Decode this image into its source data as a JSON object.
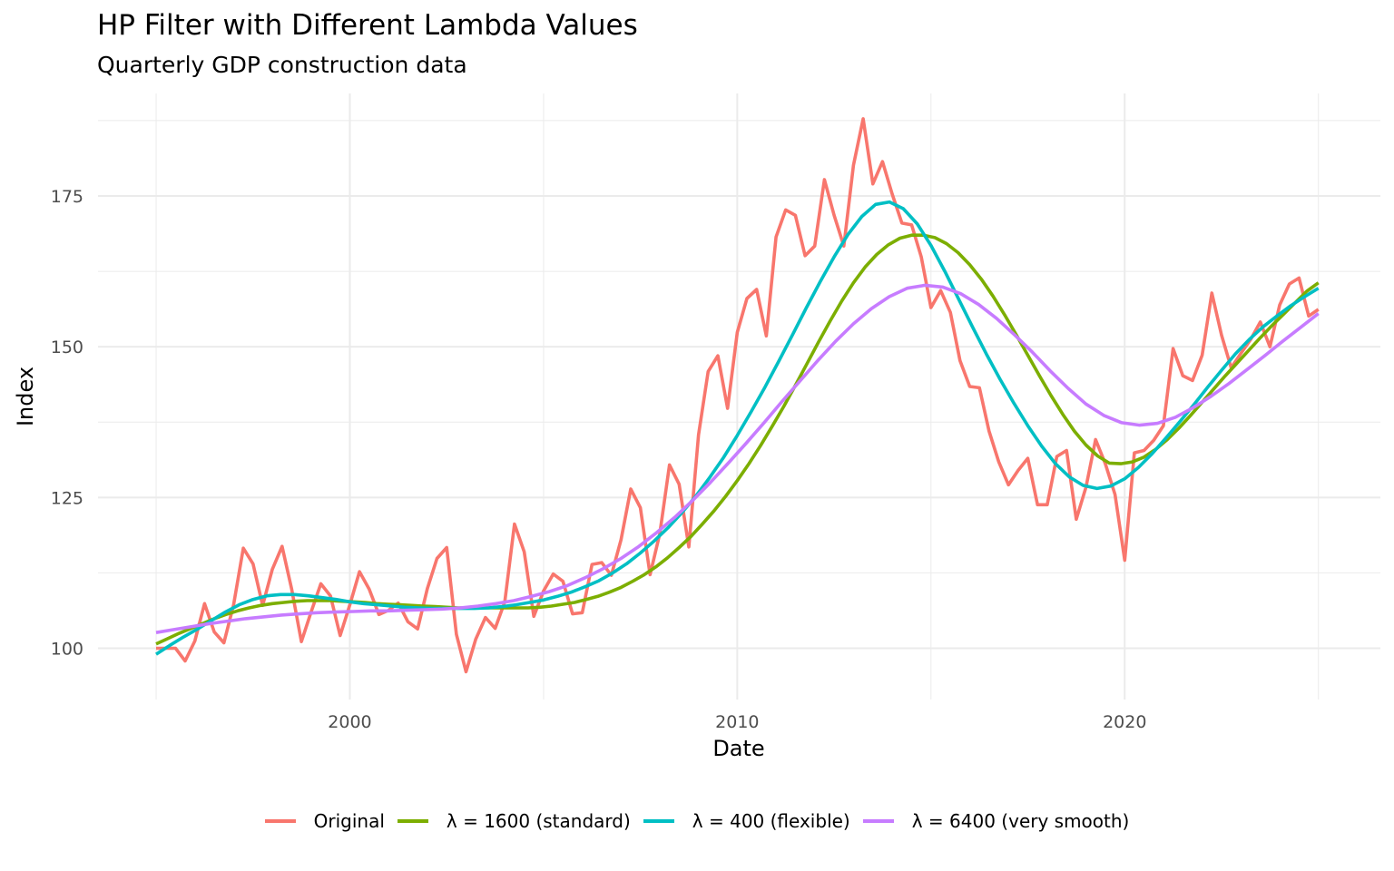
{
  "chart_data": {
    "type": "line",
    "title": "HP Filter with Different Lambda Values",
    "subtitle": "Quarterly GDP construction data",
    "xlabel": "Date",
    "ylabel": "Index",
    "x_start": 1995.0,
    "x_step": 0.25,
    "xlim": [
      1993.5,
      2026.6
    ],
    "ylim": [
      91.5,
      192.0
    ],
    "x_ticks": [
      2000,
      2010,
      2020
    ],
    "x_tick_labels": [
      "2000",
      "2010",
      "2020"
    ],
    "x_minor_ticks": [
      1995,
      2005,
      2015,
      2025
    ],
    "y_ticks": [
      100,
      125,
      150,
      175
    ],
    "y_tick_labels": [
      "100",
      "125",
      "150",
      "175"
    ],
    "y_minor_ticks": [
      112.5,
      137.5,
      162.5,
      187.5
    ],
    "grid": true,
    "legend_position": "bottom",
    "series": [
      {
        "name": "Original",
        "color": "#F8766D",
        "values": [
          100.0,
          100.0,
          100.0,
          97.9,
          101.2,
          107.4,
          102.7,
          100.9,
          107.2,
          116.6,
          114.0,
          107.1,
          113.1,
          116.9,
          109.8,
          101.1,
          106.0,
          110.7,
          108.7,
          102.1,
          107.2,
          112.7,
          109.8,
          105.6,
          106.3,
          107.5,
          104.4,
          103.2,
          109.9,
          114.9,
          116.7,
          102.3,
          96.1,
          101.5,
          105.1,
          103.3,
          107.7,
          120.6,
          116.0,
          105.3,
          109.5,
          112.3,
          111.1,
          105.7,
          105.9,
          113.9,
          114.2,
          112.1,
          118.0,
          126.4,
          123.3,
          112.2,
          119.0,
          130.4,
          127.2,
          116.8,
          135.4,
          145.9,
          148.5,
          139.8,
          152.4,
          158.0,
          159.5,
          151.8,
          168.2,
          172.7,
          171.8,
          165.1,
          166.7,
          177.7,
          171.8,
          166.7,
          180.1,
          187.8,
          177.0,
          180.7,
          175.3,
          170.5,
          170.2,
          164.9,
          156.5,
          159.3,
          155.7,
          147.7,
          143.4,
          143.2,
          136.0,
          130.9,
          127.1,
          129.5,
          131.5,
          123.8,
          123.8,
          131.8,
          132.8,
          121.4,
          126.7,
          134.6,
          130.6,
          125.5,
          114.6,
          132.4,
          132.8,
          134.5,
          136.9,
          149.7,
          145.2,
          144.4,
          148.6,
          158.9,
          151.9,
          146.5,
          148.9,
          151.2,
          154.1,
          150.0,
          156.9,
          160.4,
          161.4,
          155.1,
          156.2
        ]
      },
      {
        "name": "λ = 1600 (standard)",
        "color": "#7CAE00",
        "values": [
          100.7,
          101.6,
          102.5,
          103.3,
          104.1,
          104.9,
          105.6,
          106.2,
          106.7,
          107.1,
          107.4,
          107.6,
          107.8,
          107.9,
          107.9,
          107.9,
          107.8,
          107.7,
          107.6,
          107.4,
          107.3,
          107.2,
          107.1,
          107.0,
          106.9,
          106.8,
          106.7,
          106.7,
          106.7,
          106.7,
          106.7,
          106.7,
          106.7,
          106.8,
          107.0,
          107.3,
          107.6,
          108.1,
          108.6,
          109.3,
          110.1,
          111.1,
          112.2,
          113.5,
          115.0,
          116.7,
          118.5,
          120.6,
          122.8,
          125.2,
          127.8,
          130.6,
          133.6,
          136.8,
          140.1,
          143.6,
          147.2,
          150.8,
          154.3,
          157.6,
          160.6,
          163.2,
          165.3,
          166.9,
          168.0,
          168.5,
          168.5,
          168.1,
          167.1,
          165.6,
          163.6,
          161.2,
          158.4,
          155.3,
          152.0,
          148.6,
          145.2,
          141.9,
          138.8,
          136.0,
          133.7,
          131.9,
          130.7,
          130.6,
          130.9,
          131.7,
          133.0,
          134.6,
          136.5,
          138.6,
          140.8,
          143.0,
          145.2,
          147.3,
          149.4,
          151.5,
          153.5,
          155.4,
          157.3,
          159.2,
          160.6
        ]
      },
      {
        "name": "λ = 400 (flexible)",
        "color": "#00BFC4",
        "values": [
          99.0,
          100.5,
          101.9,
          103.2,
          104.6,
          106.0,
          107.2,
          108.1,
          108.7,
          108.9,
          108.9,
          108.7,
          108.4,
          108.1,
          107.7,
          107.4,
          107.2,
          107.0,
          106.8,
          106.7,
          106.6,
          106.6,
          106.6,
          106.6,
          106.7,
          106.9,
          107.2,
          107.6,
          108.0,
          108.6,
          109.3,
          110.2,
          111.2,
          112.5,
          114.0,
          115.8,
          117.8,
          120.0,
          122.5,
          125.2,
          128.3,
          131.6,
          135.3,
          139.2,
          143.3,
          147.6,
          152.0,
          156.5,
          160.8,
          164.9,
          168.6,
          171.6,
          173.6,
          174.0,
          172.9,
          170.4,
          166.8,
          162.5,
          157.9,
          153.3,
          148.8,
          144.6,
          140.6,
          136.9,
          133.5,
          130.6,
          128.4,
          127.0,
          126.5,
          126.9,
          128.1,
          130.0,
          132.3,
          134.9,
          137.6,
          140.4,
          143.3,
          146.1,
          148.8,
          151.2,
          153.3,
          155.1,
          156.8,
          158.3,
          159.7
        ]
      },
      {
        "name": "λ = 6400 (very smooth)",
        "color": "#C77CFF",
        "values": [
          102.6,
          103.1,
          103.6,
          104.1,
          104.5,
          104.9,
          105.2,
          105.5,
          105.7,
          105.9,
          106.0,
          106.1,
          106.2,
          106.2,
          106.3,
          106.4,
          106.5,
          106.7,
          107.0,
          107.4,
          107.9,
          108.6,
          109.4,
          110.4,
          111.7,
          113.2,
          114.9,
          116.9,
          119.2,
          121.7,
          124.5,
          127.5,
          130.7,
          134.0,
          137.4,
          140.9,
          144.3,
          147.7,
          150.9,
          153.8,
          156.3,
          158.3,
          159.7,
          160.2,
          159.9,
          158.8,
          157.0,
          154.7,
          152.0,
          149.1,
          146.0,
          143.1,
          140.5,
          138.6,
          137.4,
          137.0,
          137.3,
          138.3,
          139.9,
          141.8,
          143.9,
          146.2,
          148.5,
          150.9,
          153.2,
          155.5
        ]
      }
    ]
  },
  "legend": {
    "items": [
      {
        "label": "Original",
        "color": "#F8766D"
      },
      {
        "label": "λ = 1600 (standard)",
        "color": "#7CAE00"
      },
      {
        "label": "λ = 400 (flexible)",
        "color": "#00BFC4"
      },
      {
        "label": "λ = 6400 (very smooth)",
        "color": "#C77CFF"
      }
    ]
  }
}
